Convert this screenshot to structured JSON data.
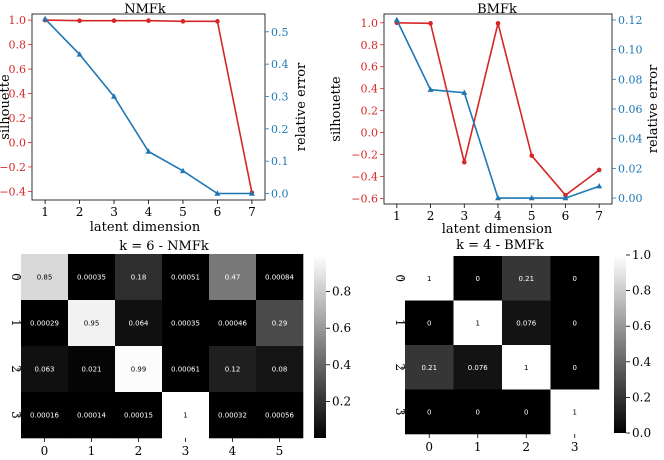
{
  "colors": {
    "silhouette": "#d62728",
    "error": "#1f77b4"
  },
  "chart_data": [
    {
      "type": "line",
      "title": "NMFk",
      "xlabel": "latent dimension",
      "x": [
        1,
        2,
        3,
        4,
        5,
        6,
        7
      ],
      "xticks": [
        "1",
        "2",
        "3",
        "4",
        "5",
        "6",
        "7"
      ],
      "left_axis": {
        "label": "silhouette",
        "ylim": [
          -0.47,
          1.05
        ],
        "ticks": [
          -0.4,
          -0.2,
          0.0,
          0.2,
          0.4,
          0.6,
          0.8,
          1.0
        ],
        "tick_labels": [
          "−0.4",
          "−0.2",
          "0.0",
          "0.2",
          "0.4",
          "0.6",
          "0.8",
          "1.0"
        ]
      },
      "right_axis": {
        "label": "relative error",
        "ylim": [
          -0.02,
          0.555
        ],
        "ticks": [
          0.0,
          0.1,
          0.2,
          0.3,
          0.4,
          0.5
        ],
        "tick_labels": [
          "0.0",
          "0.1",
          "0.2",
          "0.3",
          "0.4",
          "0.5"
        ]
      },
      "series": [
        {
          "axis": "left",
          "marker": "circle",
          "values": [
            1.0,
            0.995,
            0.995,
            0.995,
            0.99,
            0.99,
            -0.41
          ]
        },
        {
          "axis": "right",
          "marker": "triangle",
          "values": [
            0.54,
            0.43,
            0.3,
            0.13,
            0.07,
            0.0,
            0.0
          ]
        }
      ]
    },
    {
      "type": "line",
      "title": "BMFk",
      "xlabel": "latent dimension",
      "x": [
        1,
        2,
        3,
        4,
        5,
        6,
        7
      ],
      "xticks": [
        "1",
        "2",
        "3",
        "4",
        "5",
        "6",
        "7"
      ],
      "left_axis": {
        "label": "silhouette",
        "ylim": [
          -0.65,
          1.08
        ],
        "ticks": [
          -0.6,
          -0.4,
          -0.2,
          0.0,
          0.2,
          0.4,
          0.6,
          0.8,
          1.0
        ],
        "tick_labels": [
          "−0.6",
          "−0.4",
          "−0.2",
          "0.0",
          "0.2",
          "0.4",
          "0.6",
          "0.8",
          "1.0"
        ]
      },
      "right_axis": {
        "label": "relative error",
        "ylim": [
          -0.004,
          0.124
        ],
        "ticks": [
          0.0,
          0.02,
          0.04,
          0.06,
          0.08,
          0.1,
          0.12
        ],
        "tick_labels": [
          "0.00",
          "0.02",
          "0.04",
          "0.06",
          "0.08",
          "0.10",
          "0.12"
        ]
      },
      "series": [
        {
          "axis": "left",
          "marker": "circle",
          "values": [
            1.0,
            0.995,
            -0.27,
            0.995,
            -0.21,
            -0.57,
            -0.34
          ]
        },
        {
          "axis": "right",
          "marker": "triangle",
          "values": [
            0.12,
            0.073,
            0.071,
            0.0,
            0.0,
            0.0,
            0.008
          ]
        }
      ]
    },
    {
      "type": "heatmap",
      "title": "k = 6 - NMFk",
      "x_tick_labels": [
        "0",
        "1",
        "2",
        "3",
        "4",
        "5"
      ],
      "y_tick_labels": [
        "0",
        "1",
        "2",
        "3"
      ],
      "values": [
        [
          0.85,
          0.00035,
          0.18,
          0.00051,
          0.47,
          0.00084
        ],
        [
          0.00029,
          0.95,
          0.064,
          0.00035,
          0.00046,
          0.29
        ],
        [
          0.063,
          0.021,
          0.99,
          0.00061,
          0.12,
          0.08
        ],
        [
          0.00016,
          0.00014,
          0.00015,
          1,
          0.00032,
          0.00056
        ]
      ],
      "labels": [
        [
          "0.85",
          "0.00035",
          "0.18",
          "0.00051",
          "0.47",
          "0.00084"
        ],
        [
          "0.00029",
          "0.95",
          "0.064",
          "0.00035",
          "0.00046",
          "0.29"
        ],
        [
          "0.063",
          "0.021",
          "0.99",
          "0.00061",
          "0.12",
          "0.08"
        ],
        [
          "0.00016",
          "0.00014",
          "0.00015",
          "1",
          "0.00032",
          "0.00056"
        ]
      ],
      "colorbar": {
        "range": [
          0,
          1
        ],
        "ticks": [
          0.2,
          0.4,
          0.6,
          0.8
        ],
        "tick_labels": [
          "0.2",
          "0.4",
          "0.6",
          "0.8"
        ]
      }
    },
    {
      "type": "heatmap",
      "title": "k = 4 - BMFk",
      "x_tick_labels": [
        "0",
        "1",
        "2",
        "3"
      ],
      "y_tick_labels": [
        "0",
        "1",
        "2",
        "3"
      ],
      "values": [
        [
          1,
          0,
          0.21,
          0
        ],
        [
          0,
          1,
          0.076,
          0
        ],
        [
          0.21,
          0.076,
          1,
          0
        ],
        [
          0,
          0,
          0,
          1
        ]
      ],
      "labels": [
        [
          "1",
          "0",
          "0.21",
          "0"
        ],
        [
          "0",
          "1",
          "0.076",
          "0"
        ],
        [
          "0.21",
          "0.076",
          "1",
          "0"
        ],
        [
          "0",
          "0",
          "0",
          "1"
        ]
      ],
      "colorbar": {
        "range": [
          0,
          1
        ],
        "ticks": [
          0.0,
          0.2,
          0.4,
          0.6,
          0.8,
          1.0
        ],
        "tick_labels": [
          "0.0",
          "0.2",
          "0.4",
          "0.6",
          "0.8",
          "1.0"
        ]
      }
    }
  ]
}
